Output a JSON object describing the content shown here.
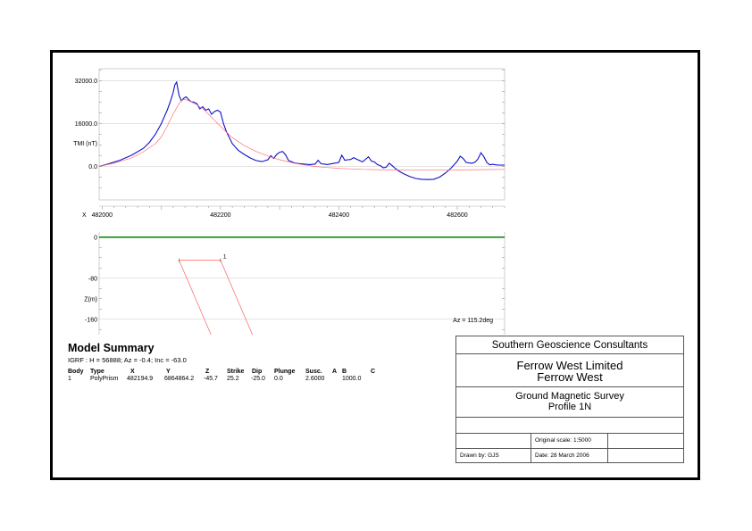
{
  "chart_data": [
    {
      "type": "line",
      "ylabel": "TMI (nT)",
      "xlabel": "X",
      "x_ticks": [
        "482000",
        "482200",
        "482400",
        "482600"
      ],
      "x_tick_values": [
        482000,
        482200,
        482400,
        482600
      ],
      "y_ticks": [
        "32000.0",
        "16000.0",
        "0.0"
      ],
      "y_tick_values": [
        32000,
        16000,
        0
      ],
      "xlim": [
        481995,
        482680
      ],
      "ylim": [
        -12500,
        36500
      ],
      "grid": true,
      "series": [
        {
          "role": "observed",
          "color": "#1010c8",
          "x": [
            481995,
            482010,
            482030,
            482050,
            482070,
            482080,
            482090,
            482100,
            482110,
            482115,
            482120,
            482123,
            482126,
            482128,
            482130,
            482134,
            482138,
            482142,
            482146,
            482150,
            482155,
            482160,
            482165,
            482170,
            482175,
            482180,
            482185,
            482190,
            482195,
            482200,
            482205,
            482210,
            482220,
            482230,
            482240,
            482250,
            482260,
            482270,
            482280,
            482285,
            482290,
            482295,
            482300,
            482305,
            482310,
            482315,
            482320,
            482325,
            482330,
            482340,
            482350,
            482360,
            482365,
            482370,
            482375,
            482380,
            482390,
            482400,
            482405,
            482410,
            482415,
            482420,
            482425,
            482430,
            482440,
            482450,
            482455,
            482460,
            482465,
            482470,
            482475,
            482480,
            482485,
            482490,
            482495,
            482500,
            482505,
            482510,
            482520,
            482530,
            482540,
            482550,
            482560,
            482570,
            482580,
            482590,
            482600,
            482605,
            482610,
            482615,
            482620,
            482625,
            482630,
            482635,
            482640,
            482645,
            482650,
            482655,
            482660,
            482665,
            482670,
            482680
          ],
          "y": [
            0,
            900,
            2300,
            4200,
            6800,
            9000,
            12000,
            16000,
            21000,
            24000,
            27500,
            30500,
            31500,
            29000,
            26500,
            24500,
            25500,
            26000,
            25000,
            24200,
            24000,
            23500,
            21500,
            22300,
            21000,
            21500,
            19500,
            20500,
            21000,
            20300,
            16000,
            13000,
            8500,
            6000,
            4500,
            3200,
            2200,
            1800,
            2500,
            4000,
            3000,
            4500,
            5300,
            5600,
            4300,
            2200,
            1800,
            1300,
            1100,
            900,
            700,
            900,
            2300,
            1000,
            900,
            700,
            1100,
            1500,
            4200,
            2300,
            2500,
            2600,
            3300,
            2700,
            1700,
            3600,
            2000,
            1700,
            700,
            300,
            -500,
            -300,
            1200,
            300,
            -700,
            -1500,
            -2200,
            -2800,
            -3800,
            -4500,
            -4800,
            -4900,
            -4800,
            -4000,
            -2500,
            -500,
            2000,
            3800,
            3000,
            1500,
            1300,
            1200,
            1600,
            2800,
            5100,
            3600,
            1500,
            600,
            800,
            600,
            500,
            500
          ]
        },
        {
          "role": "calculated",
          "color": "#ff7070",
          "x": [
            481995,
            482020,
            482050,
            482070,
            482090,
            482100,
            482110,
            482120,
            482130,
            482135,
            482140,
            482145,
            482150,
            482160,
            482170,
            482180,
            482190,
            482200,
            482210,
            482220,
            482240,
            482260,
            482280,
            482300,
            482320,
            482340,
            482360,
            482380,
            482400,
            482440,
            482480,
            482520,
            482560,
            482600,
            482640,
            482680
          ],
          "y": [
            0,
            1200,
            3200,
            5500,
            8500,
            11000,
            15000,
            19500,
            23500,
            24800,
            25000,
            24700,
            24200,
            23000,
            21500,
            19500,
            17200,
            15000,
            12800,
            10800,
            7800,
            5600,
            3900,
            2500,
            1400,
            600,
            0,
            -400,
            -700,
            -1100,
            -1300,
            -1400,
            -1400,
            -1300,
            -1200,
            -1100
          ]
        }
      ]
    },
    {
      "type": "line",
      "ylabel": "Z(m)",
      "y_ticks": [
        "0",
        "-80",
        "-160"
      ],
      "y_tick_values": [
        0,
        -80,
        -160
      ],
      "xlim": [
        481995,
        482680
      ],
      "ylim": [
        -190,
        10
      ],
      "azimuth_label": "Az = 115.2deg",
      "series": [
        {
          "role": "ground-surface",
          "color": "#008000",
          "x": [
            481995,
            482680
          ],
          "y": [
            0,
            0
          ]
        }
      ],
      "body": {
        "label": "1",
        "color": "#ff6060",
        "top_left": [
          482130,
          -45
        ],
        "top_right": [
          482200,
          -45
        ],
        "bottom_left": [
          482184,
          -190
        ],
        "bottom_right": [
          482254,
          -190
        ]
      }
    }
  ],
  "summary": {
    "title": "Model Summary",
    "igrf": "IGRF :   H = 56888;  Az = -0.4;  Inc = -63.0",
    "headers": [
      "Body",
      "Type",
      "X",
      "Y",
      "Z",
      "Strike",
      "Dip",
      "Plunge",
      "Susc.",
      "A",
      "B",
      "C"
    ],
    "row": [
      "1",
      "PolyPrism",
      "482194.9",
      "6864864.2",
      "-45.7",
      "25.2",
      "-25.0",
      "0.0",
      "2.6000",
      "",
      "1000.0",
      ""
    ]
  },
  "titleblock": {
    "company": "Southern Geoscience Consultants",
    "client_line1": "Ferrow West Limited",
    "client_line2": "Ferrow West",
    "survey_line1": "Ground Magnetic Survey",
    "survey_line2": "Profile 1N",
    "scale": "Original scale: 1:5000",
    "drawn_by": "Drawn by: GJS",
    "date": "Date: 28 March 2006"
  }
}
